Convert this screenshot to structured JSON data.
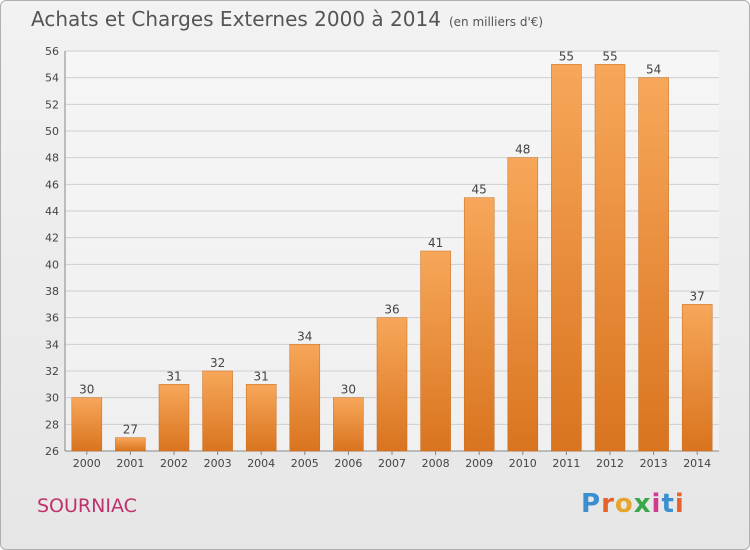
{
  "title": "Achats et Charges Externes 2000 à 2014",
  "unit": "(en milliers d'€)",
  "commune": "SOURNIAC",
  "logo": {
    "letters": [
      "P",
      "r",
      "o",
      "x",
      "i",
      "t",
      "i"
    ],
    "colors": [
      "#3a8fd0",
      "#e8622b",
      "#e8a52b",
      "#3aa84a",
      "#d03a8f",
      "#3a8fd0",
      "#e8622b"
    ]
  },
  "colors": {
    "bar_top": "#f7a75a",
    "bar_bottom": "#d9741f",
    "grid": "#cfcfcf"
  },
  "chart_data": {
    "type": "bar",
    "title": "Achats et Charges Externes 2000 à 2014",
    "categories": [
      "2000",
      "2001",
      "2002",
      "2003",
      "2004",
      "2005",
      "2006",
      "2007",
      "2008",
      "2009",
      "2010",
      "2011",
      "2012",
      "2013",
      "2014"
    ],
    "values": [
      30,
      27,
      31,
      32,
      31,
      34,
      30,
      36,
      41,
      45,
      48,
      55,
      55,
      54,
      37
    ],
    "ylim": [
      26,
      56
    ],
    "yticks": [
      26,
      28,
      30,
      32,
      34,
      36,
      38,
      40,
      42,
      44,
      46,
      48,
      50,
      52,
      54,
      56
    ],
    "grid": true
  }
}
